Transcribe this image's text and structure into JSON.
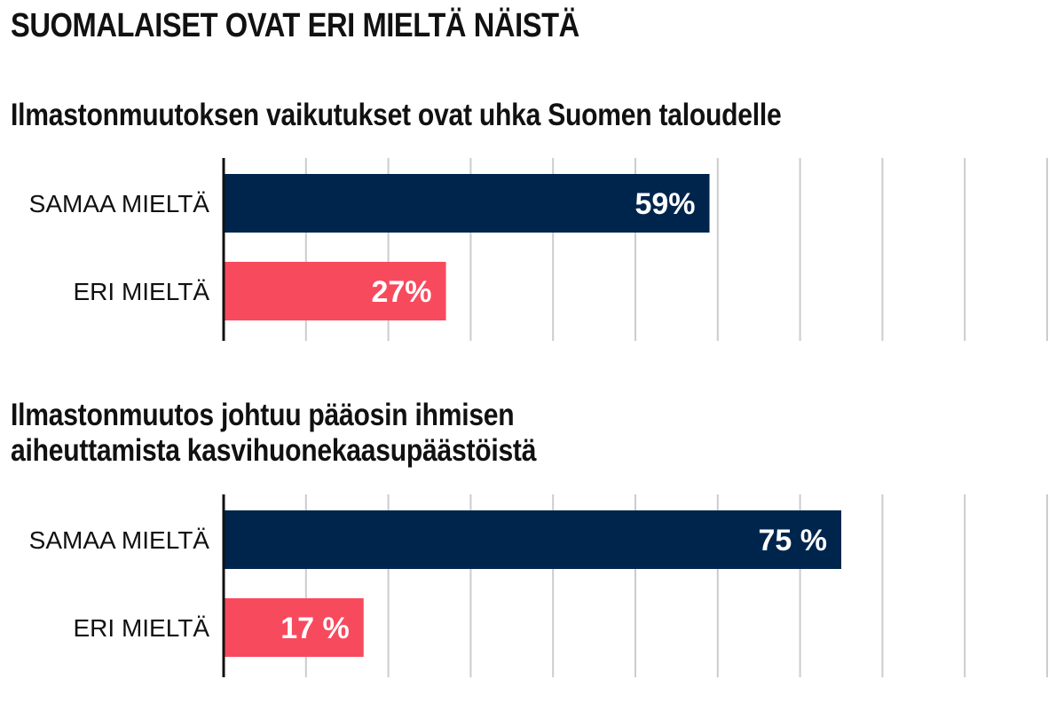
{
  "title": "SUOMALAISET OVAT ERI MIELTÄ NÄISTÄ",
  "colors": {
    "agree": "#00254d",
    "disagree": "#f84a5d",
    "grid": "#cccccc",
    "axis": "#111111"
  },
  "chart_data": [
    {
      "type": "bar",
      "orientation": "horizontal",
      "title_lines": [
        "Ilmastonmuutoksen vaikutukset ovat uhka Suomen taloudelle"
      ],
      "categories": [
        "SAMAA MIELTÄ",
        "ERI MIELTÄ"
      ],
      "values": [
        59,
        27
      ],
      "value_labels": [
        "59%",
        "27%"
      ],
      "xlim": [
        0,
        100
      ],
      "grid": true
    },
    {
      "type": "bar",
      "orientation": "horizontal",
      "title_lines": [
        "Ilmastonmuutos johtuu pääosin ihmisen",
        "aiheuttamista kasvihuonekaasupäästöistä"
      ],
      "categories": [
        "SAMAA MIELTÄ",
        "ERI MIELTÄ"
      ],
      "values": [
        75,
        17
      ],
      "value_labels": [
        "75 %",
        "17 %"
      ],
      "xlim": [
        0,
        100
      ],
      "grid": true
    }
  ]
}
